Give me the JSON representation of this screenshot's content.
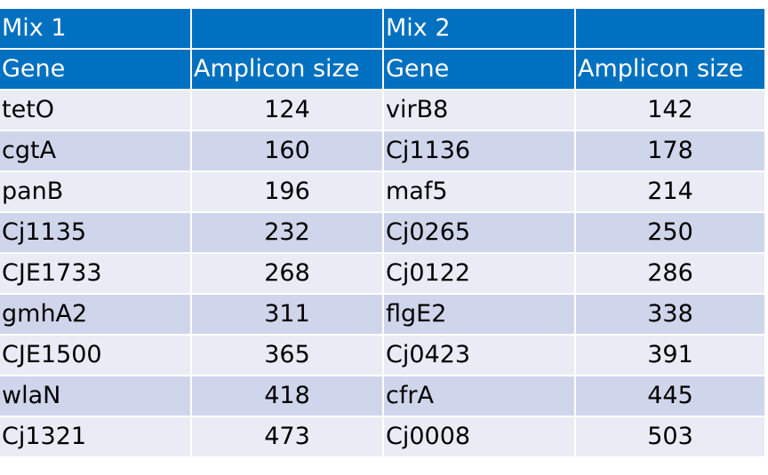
{
  "header1": [
    "Mix 1",
    "",
    "Mix 2",
    ""
  ],
  "header2": [
    "Gene",
    "Amplicon size",
    "Gene",
    "Amplicon size"
  ],
  "rows": [
    [
      "tetO",
      "124",
      "virB8",
      "142"
    ],
    [
      "cgtA",
      "160",
      "Cj1136",
      "178"
    ],
    [
      "panB",
      "196",
      "maf5",
      "214"
    ],
    [
      "Cj1135",
      "232",
      "Cj0265",
      "250"
    ],
    [
      "CJE1733",
      "268",
      "Cj0122",
      "286"
    ],
    [
      "gmhA2",
      "311",
      "flgE2",
      "338"
    ],
    [
      "CJE1500",
      "365",
      "Cj0423",
      "391"
    ],
    [
      "wlaN",
      "418",
      "cfrA",
      "445"
    ],
    [
      "Cj1321",
      "473",
      "Cj0008",
      "503"
    ]
  ],
  "colors": {
    "header_bg": "#0070c0",
    "header_text": "#ffffff",
    "row_light": "#e9ebf5",
    "row_dark": "#cfd5ea"
  }
}
